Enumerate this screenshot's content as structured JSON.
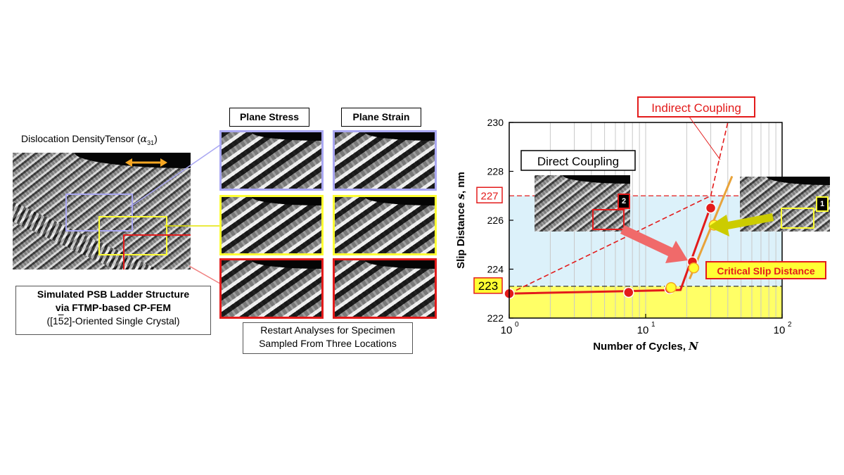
{
  "left": {
    "tensor_title": "Dislocation DensityTensor (",
    "tensor_symbol": "α",
    "tensor_sub": "31",
    "tensor_close": ")",
    "caption_line1": "Simulated PSB Ladder Structure",
    "caption_line2": "via FTMP-based CP-FEM",
    "caption_line3_pre": "([1",
    "caption_line3_bar": "5",
    "caption_line3_post": "2]-Oriented Single Crystal)"
  },
  "middle": {
    "header_stress": "Plane Stress",
    "header_strain": "Plane Strain",
    "restart_line1": "Restart Analyses for Specimen",
    "restart_line2": "Sampled From Three Locations"
  },
  "colors": {
    "blue": "#a9a7f2",
    "yellow": "#ffff33",
    "red": "#e31b1b",
    "light_blue": "#dcf1fa",
    "light_yellow": "#ffff66",
    "arrow_orange": "#f5a623",
    "arrow_pink": "#f06a6a",
    "arrow_olive": "#cccc00"
  },
  "chart_data": {
    "type": "line",
    "x_scale": "log",
    "xlim": [
      1,
      100
    ],
    "ylim": [
      222,
      230
    ],
    "xlabel": "Number of Cycles, ",
    "xlabel_var": "N",
    "ylabel": "Slip Distance ",
    "ylabel_var": "s",
    "ylabel_unit": ", nm",
    "x_ticks": [
      {
        "base": "10",
        "exp": "0",
        "value": 1
      },
      {
        "base": "10",
        "exp": "1",
        "value": 10
      },
      {
        "base": "10",
        "exp": "2",
        "value": 100
      }
    ],
    "y_ticks": [
      "222",
      "224",
      "226",
      "228",
      "230"
    ],
    "y_tick_values": [
      222,
      224,
      226,
      228,
      230
    ],
    "red_points": [
      {
        "x": 1,
        "y": 223.0
      },
      {
        "x": 7.5,
        "y": 223.05
      },
      {
        "x": 15,
        "y": 223.2
      },
      {
        "x": 22,
        "y": 224.3
      },
      {
        "x": 30,
        "y": 226.5
      }
    ],
    "yellow_points": [
      {
        "x": 15,
        "y": 223.25
      },
      {
        "x": 22,
        "y": 224.05
      },
      {
        "x": 31,
        "y": 225.8
      }
    ],
    "direct_line": [
      {
        "x": 1,
        "y": 223.0
      },
      {
        "x": 18,
        "y": 223.15
      },
      {
        "x": 31,
        "y": 226.8
      }
    ],
    "orange_line": [
      {
        "x": 21,
        "y": 223.6
      },
      {
        "x": 43,
        "y": 227.8
      }
    ],
    "indirect_line_1": [
      {
        "x": 1,
        "y": 223.0
      },
      {
        "x": 30,
        "y": 227.0
      }
    ],
    "indirect_line_2": [
      {
        "x": 30,
        "y": 227.0
      },
      {
        "x": 40,
        "y": 230.0
      }
    ],
    "dashed_levels": [
      {
        "y": 227,
        "label": "227"
      },
      {
        "y": 223.3,
        "label": "223"
      }
    ],
    "annotations": {
      "indirect": "Indirect Coupling",
      "direct": "Direct Coupling",
      "critical": "Critical Slip Distance",
      "marker_2": "2",
      "marker_1": "1"
    }
  }
}
